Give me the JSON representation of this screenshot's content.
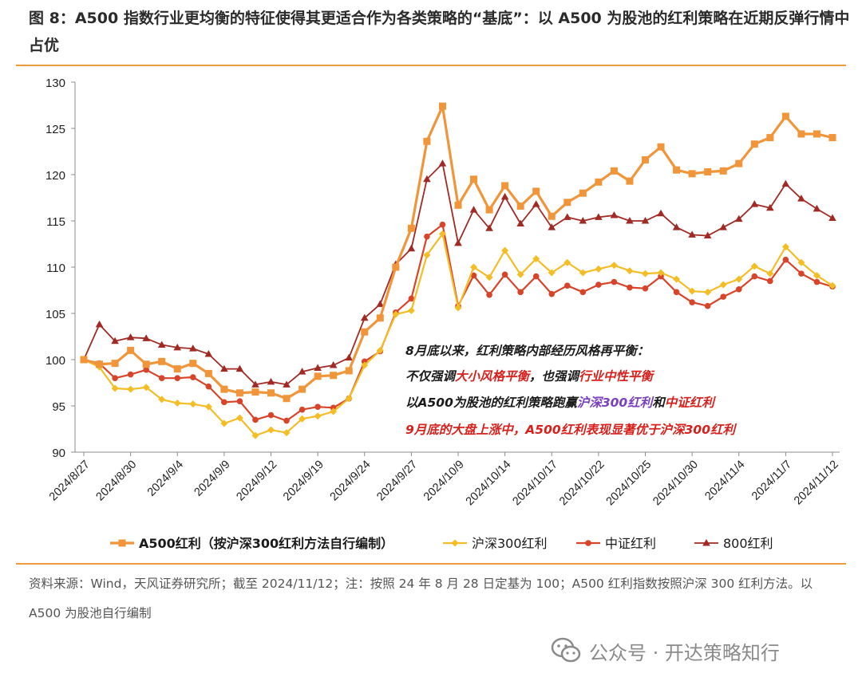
{
  "figure": {
    "title": "图 8：A500 指数行业更均衡的特征使得其更适合作为各类策略的“基底”：以 A500 为股池的红利策略在近期反弹行情中占优",
    "note": "资料来源：Wind，天风证券研究所；截至 2024/11/12；注：按照 24 年 8 月 28 日定基为 100；A500 红利指数按照沪深 300 红利方法。以 A500 为股池自行编制",
    "watermark": "公众号 · 开达策略知行"
  },
  "annotation": {
    "l1": "8月底以来，红利策略内部经历风格再平衡：",
    "l2a": "不仅强调",
    "l2b": "大小风格平衡",
    "l2c": "，也强调",
    "l2d": "行业中性平衡",
    "l3a": "以A500为股池的红利策略跑赢",
    "l3b": "沪深300红利",
    "l3c": "和",
    "l3d": "中证红利",
    "l4": "9月底的大盘上涨中，A500红利表现显著优于沪深300红利"
  },
  "colors": {
    "a500": "#f0953a",
    "hs300": "#f4bd25",
    "zz": "#d8442a",
    "b800": "#a12a24",
    "accent_red": "#d8201c",
    "accent_purple": "#7a3fbf"
  },
  "chart_data": {
    "type": "line",
    "title": "",
    "xlabel": "",
    "ylabel": "",
    "ylim": [
      90,
      130
    ],
    "yticks": [
      "90",
      "95",
      "100",
      "105",
      "110",
      "115",
      "120",
      "125",
      "130"
    ],
    "xtick_labels": [
      "2024/8/27",
      "2024/8/30",
      "2024/9/4",
      "2024/9/9",
      "2024/9/12",
      "2024/9/19",
      "2024/9/24",
      "2024/9/27",
      "2024/10/9",
      "2024/10/14",
      "2024/10/17",
      "2024/10/22",
      "2024/10/25",
      "2024/10/30",
      "2024/11/4",
      "2024/11/7",
      "2024/11/12"
    ],
    "xtick_index": [
      0,
      3,
      6,
      9,
      12,
      15,
      18,
      21,
      24,
      27,
      30,
      33,
      36,
      39,
      42,
      45,
      48
    ],
    "series": [
      {
        "name": "A500红利（按沪深300红利方法自行编制）",
        "key": "a500",
        "values": [
          100,
          99.5,
          99.6,
          101.0,
          99.5,
          99.8,
          99.0,
          99.6,
          98.5,
          96.8,
          96.4,
          96.5,
          96.4,
          95.8,
          96.8,
          98.2,
          98.3,
          98.8,
          103.0,
          104.5,
          110.0,
          114.2,
          123.6,
          127.4,
          116.7,
          119.5,
          116.2,
          118.8,
          116.6,
          118.2,
          115.5,
          117.0,
          118.0,
          119.2,
          120.4,
          119.3,
          121.6,
          123.0,
          120.5,
          120.1,
          120.3,
          120.4,
          121.2,
          123.3,
          124.0,
          126.3,
          124.4,
          124.4,
          124.0
        ]
      },
      {
        "name": "沪深300红利",
        "key": "hs300",
        "values": [
          100,
          99.2,
          96.9,
          96.8,
          97.0,
          95.7,
          95.3,
          95.2,
          94.9,
          93.1,
          93.7,
          91.8,
          92.4,
          92.1,
          93.6,
          93.9,
          94.4,
          95.8,
          99.4,
          101.0,
          104.9,
          105.3,
          111.3,
          113.6,
          105.6,
          110.0,
          108.9,
          111.8,
          109.2,
          110.9,
          109.4,
          110.5,
          109.4,
          109.8,
          110.2,
          109.6,
          109.3,
          109.4,
          108.7,
          107.4,
          107.3,
          108.1,
          108.7,
          110.1,
          109.3,
          112.2,
          110.5,
          109.1,
          108.0
        ]
      },
      {
        "name": "中证红利",
        "key": "zz",
        "values": [
          100,
          99.6,
          98.0,
          98.4,
          98.9,
          98.0,
          98.0,
          98.1,
          97.1,
          95.4,
          95.5,
          93.5,
          94.0,
          93.4,
          94.6,
          94.9,
          94.8,
          95.8,
          99.8,
          100.9,
          105.1,
          106.6,
          113.3,
          114.6,
          105.8,
          109.1,
          107.0,
          109.2,
          107.3,
          109.0,
          107.1,
          108.0,
          107.3,
          108.1,
          108.4,
          107.8,
          107.7,
          109.0,
          107.3,
          106.2,
          105.8,
          106.8,
          107.6,
          109.0,
          108.5,
          110.8,
          109.3,
          108.4,
          107.9
        ]
      },
      {
        "name": "800红利",
        "key": "b800",
        "values": [
          100,
          103.8,
          102.0,
          102.4,
          102.3,
          101.6,
          101.3,
          101.2,
          100.6,
          99.0,
          99.0,
          97.3,
          97.6,
          97.3,
          98.7,
          99.1,
          99.4,
          100.2,
          104.5,
          106.0,
          110.3,
          112.0,
          119.5,
          121.2,
          112.6,
          116.2,
          114.2,
          117.6,
          114.7,
          116.8,
          114.3,
          115.4,
          115.0,
          115.4,
          115.6,
          115.0,
          115.0,
          115.8,
          114.3,
          113.5,
          113.4,
          114.3,
          115.2,
          116.8,
          116.4,
          119.0,
          117.4,
          116.3,
          115.3
        ]
      }
    ]
  }
}
